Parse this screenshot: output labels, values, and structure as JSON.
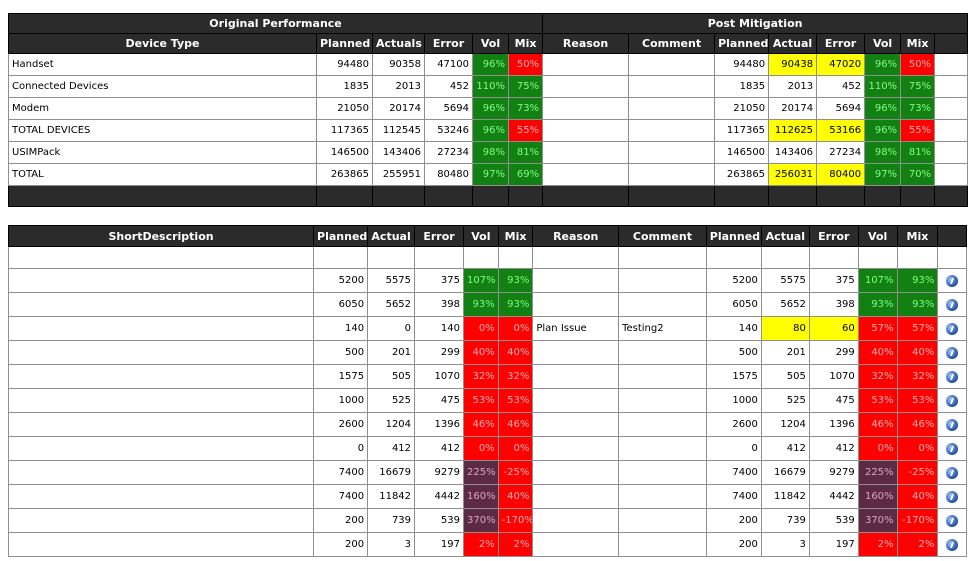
{
  "top_table": {
    "group_headers": {
      "original": "Original Performance",
      "post": "Post Mitigation"
    },
    "columns": {
      "device_type": "Device Type",
      "planned": "Planned",
      "actuals": "Actuals",
      "error": "Error",
      "vol": "Vol",
      "mix": "Mix",
      "reason": "Reason",
      "comment": "Comment",
      "post_planned": "Planned",
      "post_actual": "Actual",
      "post_error": "Error",
      "post_vol": "Vol",
      "post_mix": "Mix"
    },
    "rows": [
      {
        "device": "Handset",
        "planned": "94480",
        "actuals": "90358",
        "error": "47100",
        "vol": "96%",
        "mix": "50%",
        "reason": "",
        "comment": "",
        "p_planned": "94480",
        "p_actual": "90438",
        "p_error": "47020",
        "p_vol": "96%",
        "p_mix": "50%"
      },
      {
        "device": "Connected Devices",
        "planned": "1835",
        "actuals": "2013",
        "error": "452",
        "vol": "110%",
        "mix": "75%",
        "reason": "",
        "comment": "",
        "p_planned": "1835",
        "p_actual": "2013",
        "p_error": "452",
        "p_vol": "110%",
        "p_mix": "75%"
      },
      {
        "device": "Modem",
        "planned": "21050",
        "actuals": "20174",
        "error": "5694",
        "vol": "96%",
        "mix": "73%",
        "reason": "",
        "comment": "",
        "p_planned": "21050",
        "p_actual": "20174",
        "p_error": "5694",
        "p_vol": "96%",
        "p_mix": "73%"
      },
      {
        "device": "TOTAL DEVICES",
        "planned": "117365",
        "actuals": "112545",
        "error": "53246",
        "vol": "96%",
        "mix": "55%",
        "reason": "",
        "comment": "",
        "p_planned": "117365",
        "p_actual": "112625",
        "p_error": "53166",
        "p_vol": "96%",
        "p_mix": "55%"
      },
      {
        "device": "USIMPack",
        "planned": "146500",
        "actuals": "143406",
        "error": "27234",
        "vol": "98%",
        "mix": "81%",
        "reason": "",
        "comment": "",
        "p_planned": "146500",
        "p_actual": "143406",
        "p_error": "27234",
        "p_vol": "98%",
        "p_mix": "81%"
      },
      {
        "device": "TOTAL",
        "planned": "263865",
        "actuals": "255951",
        "error": "80480",
        "vol": "97%",
        "mix": "69%",
        "reason": "",
        "comment": "",
        "p_planned": "263865",
        "p_actual": "256031",
        "p_error": "80400",
        "p_vol": "97%",
        "p_mix": "70%"
      }
    ],
    "cell_colors": {
      "vol": [
        "g",
        "g",
        "g",
        "g",
        "g",
        "g"
      ],
      "mix": [
        "r",
        "g",
        "g",
        "r",
        "g",
        "g"
      ],
      "p_actual": [
        "y",
        "",
        "",
        "y",
        "",
        "y"
      ],
      "p_error": [
        "y",
        "",
        "",
        "y",
        "",
        "y"
      ],
      "p_vol": [
        "g",
        "g",
        "g",
        "g",
        "g",
        "g"
      ],
      "p_mix": [
        "r",
        "g",
        "g",
        "r",
        "g",
        "g"
      ]
    }
  },
  "bottom_table": {
    "columns": {
      "short_description": "ShortDescription",
      "planned": "Planned",
      "actual": "Actual",
      "error": "Error",
      "vol": "Vol",
      "mix": "Mix",
      "reason": "Reason",
      "comment": "Comment",
      "post_planned": "Planned",
      "post_actual": "Actual",
      "post_error": "Error",
      "post_vol": "Vol",
      "post_mix": "Mix"
    },
    "rows": [
      {
        "desc": "",
        "planned": "5200",
        "actual": "5575",
        "error": "375",
        "vol": "107%",
        "mix": "93%",
        "reason": "",
        "comment": "",
        "p_planned": "5200",
        "p_actual": "5575",
        "p_error": "375",
        "p_vol": "107%",
        "p_mix": "93%",
        "c": [
          "g",
          "g",
          "",
          "",
          "g",
          "g"
        ]
      },
      {
        "desc": "",
        "planned": "6050",
        "actual": "5652",
        "error": "398",
        "vol": "93%",
        "mix": "93%",
        "reason": "",
        "comment": "",
        "p_planned": "6050",
        "p_actual": "5652",
        "p_error": "398",
        "p_vol": "93%",
        "p_mix": "93%",
        "c": [
          "g",
          "g",
          "",
          "",
          "g",
          "g"
        ]
      },
      {
        "desc": "",
        "planned": "140",
        "actual": "0",
        "error": "140",
        "vol": "0%",
        "mix": "0%",
        "reason": "Plan Issue",
        "comment": "Testing2",
        "p_planned": "140",
        "p_actual": "80",
        "p_error": "60",
        "p_vol": "57%",
        "p_mix": "57%",
        "c": [
          "r",
          "r",
          "y",
          "y",
          "r",
          "r"
        ]
      },
      {
        "desc": "",
        "planned": "500",
        "actual": "201",
        "error": "299",
        "vol": "40%",
        "mix": "40%",
        "reason": "",
        "comment": "",
        "p_planned": "500",
        "p_actual": "201",
        "p_error": "299",
        "p_vol": "40%",
        "p_mix": "40%",
        "c": [
          "r",
          "r",
          "",
          "",
          "r",
          "r"
        ]
      },
      {
        "desc": "",
        "planned": "1575",
        "actual": "505",
        "error": "1070",
        "vol": "32%",
        "mix": "32%",
        "reason": "",
        "comment": "",
        "p_planned": "1575",
        "p_actual": "505",
        "p_error": "1070",
        "p_vol": "32%",
        "p_mix": "32%",
        "c": [
          "r",
          "r",
          "",
          "",
          "r",
          "r"
        ]
      },
      {
        "desc": "",
        "planned": "1000",
        "actual": "525",
        "error": "475",
        "vol": "53%",
        "mix": "53%",
        "reason": "",
        "comment": "",
        "p_planned": "1000",
        "p_actual": "525",
        "p_error": "475",
        "p_vol": "53%",
        "p_mix": "53%",
        "c": [
          "r",
          "r",
          "",
          "",
          "r",
          "r"
        ]
      },
      {
        "desc": "",
        "planned": "2600",
        "actual": "1204",
        "error": "1396",
        "vol": "46%",
        "mix": "46%",
        "reason": "",
        "comment": "",
        "p_planned": "2600",
        "p_actual": "1204",
        "p_error": "1396",
        "p_vol": "46%",
        "p_mix": "46%",
        "c": [
          "r",
          "r",
          "",
          "",
          "r",
          "r"
        ]
      },
      {
        "desc": "",
        "planned": "0",
        "actual": "412",
        "error": "412",
        "vol": "0%",
        "mix": "0%",
        "reason": "",
        "comment": "",
        "p_planned": "0",
        "p_actual": "412",
        "p_error": "412",
        "p_vol": "0%",
        "p_mix": "0%",
        "c": [
          "r",
          "r",
          "",
          "",
          "r",
          "r"
        ]
      },
      {
        "desc": "",
        "planned": "7400",
        "actual": "16679",
        "error": "9279",
        "vol": "225%",
        "mix": "-25%",
        "reason": "",
        "comment": "",
        "p_planned": "7400",
        "p_actual": "16679",
        "p_error": "9279",
        "p_vol": "225%",
        "p_mix": "-25%",
        "c": [
          "p",
          "r",
          "",
          "",
          "p",
          "r"
        ]
      },
      {
        "desc": "",
        "planned": "7400",
        "actual": "11842",
        "error": "4442",
        "vol": "160%",
        "mix": "40%",
        "reason": "",
        "comment": "",
        "p_planned": "7400",
        "p_actual": "11842",
        "p_error": "4442",
        "p_vol": "160%",
        "p_mix": "40%",
        "c": [
          "p",
          "r",
          "",
          "",
          "p",
          "r"
        ]
      },
      {
        "desc": "",
        "planned": "200",
        "actual": "739",
        "error": "539",
        "vol": "370%",
        "mix": "-170%",
        "reason": "",
        "comment": "",
        "p_planned": "200",
        "p_actual": "739",
        "p_error": "539",
        "p_vol": "370%",
        "p_mix": "-170%",
        "c": [
          "p",
          "r",
          "",
          "",
          "p",
          "r"
        ]
      },
      {
        "desc": "",
        "planned": "200",
        "actual": "3",
        "error": "197",
        "vol": "2%",
        "mix": "2%",
        "reason": "",
        "comment": "",
        "p_planned": "200",
        "p_actual": "3",
        "p_error": "197",
        "p_vol": "2%",
        "p_mix": "2%",
        "c": [
          "r",
          "r",
          "",
          "",
          "r",
          "r"
        ]
      }
    ],
    "row_icon": "edit-info-icon"
  },
  "colors": {
    "header_bg": "#2b2b2b",
    "green": "#128012",
    "red": "#ff0000",
    "yellow": "#ffff00",
    "purple": "#5d2a44"
  }
}
